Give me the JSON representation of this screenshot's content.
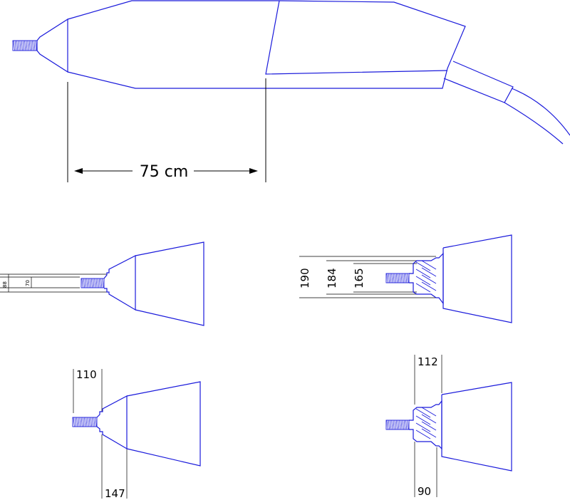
{
  "diagram": {
    "stroke_color": "#1a1adb",
    "dimension_color": "#000000",
    "labels": {
      "overall_length": "75 cm",
      "d88": "88",
      "d70": "70",
      "d190": "190",
      "d184": "184",
      "d165": "165",
      "d110": "110",
      "d147": "147",
      "d112": "112",
      "d90": "90"
    }
  }
}
